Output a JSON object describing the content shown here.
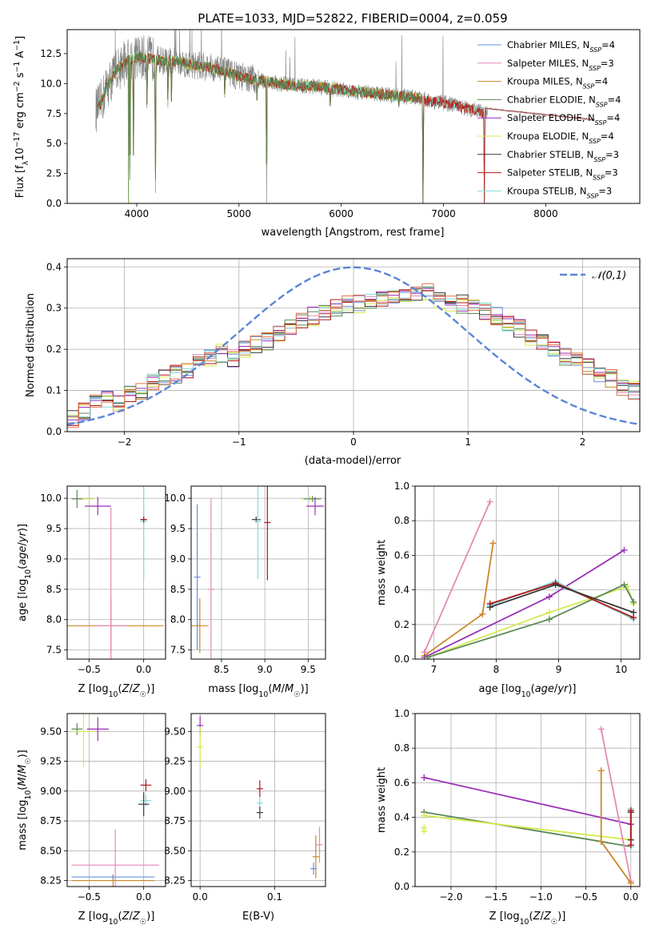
{
  "figure": {
    "title": "PLATE=1033, MJD=52822, FIBERID=0004, z=0.059"
  },
  "colors": {
    "Chabrier MILES": "#6a8fd8",
    "Salpeter MILES": "#e589b8",
    "Kroupa MILES": "#c8872a",
    "Chabrier ELODIE": "#5a8a56",
    "Salpeter ELODIE": "#9b30b8",
    "Kroupa ELODIE": "#d3ea4e",
    "Chabrier STELIB": "#3a3a3a",
    "Salpeter STELIB": "#b01818",
    "Kroupa STELIB": "#86d8da",
    "data": "#808080",
    "gaussian": "#5b86d6",
    "hist_extra": "#e4704a"
  },
  "chart_data": [
    {
      "id": "spectrum",
      "type": "line",
      "xlabel": "wavelength [Angstrom, rest frame]",
      "ylabel": "Flux [f_λ 10^-17 erg cm^-2 s^-1 A^-1]",
      "xlim": [
        3320,
        8920
      ],
      "ylim": [
        0,
        14.5
      ],
      "xticks": [
        4000,
        5000,
        6000,
        7000,
        8000
      ],
      "yticks": [
        0.0,
        2.5,
        5.0,
        7.5,
        10.0,
        12.5
      ],
      "legend_position": "top-right",
      "legend": [
        {
          "name": "Chabrier MILES",
          "nssp": "4"
        },
        {
          "name": "Salpeter MILES",
          "nssp": "3"
        },
        {
          "name": "Kroupa MILES",
          "nssp": "4"
        },
        {
          "name": "Chabrier ELODIE",
          "nssp": "4"
        },
        {
          "name": "Salpeter ELODIE",
          "nssp": "4"
        },
        {
          "name": "Kroupa ELODIE",
          "nssp": "4"
        },
        {
          "name": "Chabrier STELIB",
          "nssp": "3"
        },
        {
          "name": "Salpeter STELIB",
          "nssp": "3"
        },
        {
          "name": "Kroupa STELIB",
          "nssp": "3"
        }
      ],
      "continuum": [
        [
          3600,
          7.8
        ],
        [
          3650,
          8.3
        ],
        [
          3700,
          9.6
        ],
        [
          3750,
          10.3
        ],
        [
          3800,
          11.1
        ],
        [
          3900,
          11.9
        ],
        [
          4000,
          12.2
        ],
        [
          4100,
          12.1
        ],
        [
          4200,
          12.0
        ],
        [
          4300,
          11.8
        ],
        [
          4400,
          11.9
        ],
        [
          4500,
          11.6
        ],
        [
          4600,
          11.5
        ],
        [
          4700,
          11.4
        ],
        [
          4800,
          11.2
        ],
        [
          4900,
          10.9
        ],
        [
          5000,
          10.6
        ],
        [
          5100,
          10.4
        ],
        [
          5200,
          10.3
        ],
        [
          5300,
          10.1
        ],
        [
          5400,
          10.0
        ],
        [
          5500,
          9.9
        ],
        [
          5600,
          9.8
        ],
        [
          5700,
          9.8
        ],
        [
          5800,
          9.7
        ],
        [
          5900,
          9.6
        ],
        [
          6000,
          9.5
        ],
        [
          6100,
          9.4
        ],
        [
          6200,
          9.3
        ],
        [
          6300,
          9.2
        ],
        [
          6400,
          9.1
        ],
        [
          6500,
          9.0
        ],
        [
          6600,
          8.9
        ],
        [
          6700,
          8.9
        ],
        [
          6800,
          8.7
        ],
        [
          6900,
          8.5
        ],
        [
          7000,
          8.4
        ],
        [
          7100,
          8.2
        ],
        [
          7200,
          8.0
        ],
        [
          7300,
          7.8
        ],
        [
          7400,
          7.5
        ]
      ],
      "absorption_dips": [
        [
          3934,
          0.0
        ],
        [
          3968,
          4.0
        ],
        [
          4101,
          7.5
        ],
        [
          4183,
          0.0
        ],
        [
          4305,
          8.0
        ],
        [
          4340,
          8.5
        ],
        [
          4861,
          8.6
        ],
        [
          5176,
          8.6
        ],
        [
          5270,
          0.0
        ],
        [
          5893,
          7.9
        ],
        [
          6563,
          7.9
        ],
        [
          6800,
          0.0
        ],
        [
          7400,
          0.0
        ]
      ]
    },
    {
      "id": "residuals",
      "type": "line",
      "xlabel": "(data-model)/error",
      "ylabel": "Normed distribution",
      "xlim": [
        -2.5,
        2.5
      ],
      "ylim": [
        0,
        0.42
      ],
      "xticks": [
        -2,
        -1,
        0,
        1,
        2
      ],
      "yticks": [
        0.0,
        0.1,
        0.2,
        0.3,
        0.4
      ],
      "legend_position": "top-right",
      "gaussian_label": "𝒩(0,1)",
      "bin_width": 0.1,
      "bins_start": -2.5,
      "histogram": [
        0.03,
        0.05,
        0.07,
        0.08,
        0.07,
        0.09,
        0.1,
        0.12,
        0.13,
        0.14,
        0.15,
        0.17,
        0.18,
        0.19,
        0.18,
        0.2,
        0.21,
        0.22,
        0.24,
        0.25,
        0.27,
        0.28,
        0.29,
        0.3,
        0.31,
        0.31,
        0.32,
        0.32,
        0.33,
        0.33,
        0.33,
        0.34,
        0.32,
        0.31,
        0.31,
        0.3,
        0.29,
        0.28,
        0.26,
        0.25,
        0.23,
        0.22,
        0.2,
        0.18,
        0.17,
        0.16,
        0.14,
        0.13,
        0.11,
        0.1,
        0.09,
        0.08,
        0.07,
        0.06,
        0.06,
        0.05,
        0.05,
        0.05,
        0.04,
        0.04
      ]
    },
    {
      "id": "age_vs_Z",
      "type": "scatter",
      "xlabel": "Z [log10(Z/Z☉)]",
      "ylabel": "age  [log10(age/yr)]",
      "xlim": [
        -0.7,
        0.2
      ],
      "ylim": [
        7.35,
        10.2
      ],
      "xticks": [
        -0.5,
        0.0
      ],
      "xticklabels": [
        "−0.5",
        "0.0"
      ],
      "yticks": [
        7.5,
        8.0,
        8.5,
        9.0,
        9.5,
        10.0
      ],
      "points": [
        {
          "series": "Kroupa ELODIE",
          "x": -0.55,
          "y": 9.99,
          "xerr": 0.1,
          "yerr": 0.0
        },
        {
          "series": "Chabrier ELODIE",
          "x": -0.61,
          "y": 9.99,
          "xerr": 0.05,
          "yerr": 0.15
        },
        {
          "series": "Salpeter ELODIE",
          "x": -0.42,
          "y": 9.87,
          "xerr": 0.12,
          "yerr": 0.15
        },
        {
          "series": "Chabrier STELIB",
          "x": 0.0,
          "y": 9.65,
          "xerr": 0.0,
          "yerr": 0.05
        },
        {
          "series": "Kroupa STELIB",
          "x": 0.0,
          "y": 9.62,
          "xerr": 0.0,
          "yerr": 0.95
        },
        {
          "series": "Salpeter STELIB",
          "x": 0.0,
          "y": 9.65,
          "xerr": 0.0,
          "yerr": 0.05
        },
        {
          "series": "Kroupa MILES",
          "x": -0.3,
          "y": 7.9,
          "xerr": 0.48,
          "yerr": 0.45
        },
        {
          "series": "Salpeter MILES",
          "x": -0.3,
          "y": 7.9,
          "xerr": 0.15,
          "yerr": 1.95
        }
      ]
    },
    {
      "id": "age_vs_mass",
      "type": "scatter",
      "xlabel": "mass [log10(M/M☉)]",
      "ylabel": "",
      "xlim": [
        8.15,
        9.7
      ],
      "ylim": [
        7.35,
        10.2
      ],
      "xticks": [
        8.5,
        9.0,
        9.5
      ],
      "yticks": [
        7.5,
        8.0,
        8.5,
        9.0,
        9.5,
        10.0
      ],
      "points": [
        {
          "series": "Kroupa ELODIE",
          "x": 9.52,
          "y": 9.99,
          "xerr": 0.1,
          "yerr": 0.05
        },
        {
          "series": "Chabrier ELODIE",
          "x": 9.55,
          "y": 9.99,
          "xerr": 0.1,
          "yerr": 0.05
        },
        {
          "series": "Salpeter ELODIE",
          "x": 9.58,
          "y": 9.87,
          "xerr": 0.1,
          "yerr": 0.15
        },
        {
          "series": "Chabrier STELIB",
          "x": 8.9,
          "y": 9.65,
          "xerr": 0.05,
          "yerr": 0.05
        },
        {
          "series": "Kroupa STELIB",
          "x": 8.92,
          "y": 9.62,
          "xerr": 0.0,
          "yerr": 0.95
        },
        {
          "series": "Salpeter STELIB",
          "x": 9.03,
          "y": 9.6,
          "xerr": 0.0,
          "yerr": 0.95
        },
        {
          "series": "Kroupa MILES",
          "x": 8.25,
          "y": 7.9,
          "xerr": 0.1,
          "yerr": 0.45
        },
        {
          "series": "Salpeter MILES",
          "x": 8.38,
          "y": 8.5,
          "xerr": 0.0,
          "yerr": 1.5
        },
        {
          "series": "Chabrier MILES",
          "x": 8.22,
          "y": 8.7,
          "xerr": 0.0,
          "yerr": 1.2
        }
      ]
    },
    {
      "id": "mass_weight_vs_age",
      "type": "line",
      "xlabel": "age  [log10(age/yr)]",
      "ylabel": "mass weight",
      "xlim": [
        6.7,
        10.3
      ],
      "ylim": [
        0,
        1.0
      ],
      "xticks": [
        7,
        8,
        9,
        10
      ],
      "yticks": [
        0.0,
        0.2,
        0.4,
        0.6,
        0.8,
        1.0
      ],
      "series": [
        {
          "name": "Salpeter MILES",
          "x": [
            6.85,
            7.9
          ],
          "y": [
            0.04,
            0.91
          ]
        },
        {
          "name": "Kroupa MILES",
          "x": [
            6.85,
            7.78,
            7.95
          ],
          "y": [
            0.02,
            0.26,
            0.67
          ]
        },
        {
          "name": "Salpeter ELODIE",
          "x": [
            6.85,
            8.85,
            10.05
          ],
          "y": [
            0.01,
            0.36,
            0.63
          ]
        },
        {
          "name": "Kroupa ELODIE",
          "x": [
            6.9,
            8.85,
            10.1,
            10.2
          ],
          "y": [
            0.01,
            0.27,
            0.42,
            0.32
          ]
        },
        {
          "name": "Chabrier ELODIE",
          "x": [
            6.9,
            8.85,
            10.05,
            10.2
          ],
          "y": [
            0.01,
            0.23,
            0.43,
            0.33
          ]
        },
        {
          "name": "Kroupa STELIB",
          "x": [
            7.9,
            8.95,
            10.2
          ],
          "y": [
            0.31,
            0.45,
            0.23
          ]
        },
        {
          "name": "Salpeter STELIB",
          "x": [
            7.9,
            8.95,
            10.2
          ],
          "y": [
            0.32,
            0.44,
            0.24
          ]
        },
        {
          "name": "Chabrier STELIB",
          "x": [
            7.9,
            8.95,
            10.2
          ],
          "y": [
            0.3,
            0.43,
            0.27
          ]
        }
      ]
    },
    {
      "id": "mass_vs_Z",
      "type": "scatter",
      "xlabel": "Z [log10(Z/Z☉)]",
      "ylabel": "mass [log10(M/M☉)]",
      "xlim": [
        -0.7,
        0.2
      ],
      "ylim": [
        8.2,
        9.65
      ],
      "xticks": [
        -0.5,
        0.0
      ],
      "xticklabels": [
        "−0.5",
        "0.0"
      ],
      "yticks": [
        8.25,
        8.5,
        8.75,
        9.0,
        9.25,
        9.5
      ],
      "points": [
        {
          "series": "Chabrier ELODIE",
          "x": -0.61,
          "y": 9.52,
          "xerr": 0.05,
          "yerr": 0.05
        },
        {
          "series": "Kroupa ELODIE",
          "x": -0.55,
          "y": 9.5,
          "xerr": 0.1,
          "yerr": 0.3
        },
        {
          "series": "Salpeter ELODIE",
          "x": -0.42,
          "y": 9.52,
          "xerr": 0.1,
          "yerr": 0.1
        },
        {
          "series": "Salpeter STELIB",
          "x": 0.02,
          "y": 9.05,
          "xerr": 0.05,
          "yerr": 0.05
        },
        {
          "series": "Kroupa STELIB",
          "x": 0.02,
          "y": 8.92,
          "xerr": 0.05,
          "yerr": 0.05
        },
        {
          "series": "Chabrier STELIB",
          "x": 0.0,
          "y": 8.89,
          "xerr": 0.05,
          "yerr": 0.1
        },
        {
          "series": "Salpeter MILES",
          "x": -0.26,
          "y": 8.38,
          "xerr": 0.4,
          "yerr": 0.3
        },
        {
          "series": "Kroupa MILES",
          "x": -0.28,
          "y": 8.25,
          "xerr": 0.38,
          "yerr": 0.05
        },
        {
          "series": "Chabrier MILES",
          "x": -0.28,
          "y": 8.28,
          "xerr": 0.38,
          "yerr": 0.02
        }
      ]
    },
    {
      "id": "mass_vs_EBV",
      "type": "scatter",
      "xlabel": "E(B-V)",
      "ylabel": "",
      "xlim": [
        -0.012,
        0.168
      ],
      "ylim": [
        8.2,
        9.65
      ],
      "xticks": [
        0.0,
        0.1
      ],
      "yticks": [
        8.25,
        8.5,
        8.75,
        9.0,
        9.25,
        9.5
      ],
      "points": [
        {
          "series": "Salpeter ELODIE",
          "x": 0.0,
          "y": 9.55,
          "xerr": 0.0,
          "yerr": 0.08
        },
        {
          "series": "Kroupa ELODIE",
          "x": 0.0,
          "y": 9.37,
          "xerr": 0.0,
          "yerr": 0.17
        },
        {
          "series": "Salpeter STELIB",
          "x": 0.08,
          "y": 9.02,
          "xerr": 0.0,
          "yerr": 0.07
        },
        {
          "series": "Kroupa STELIB",
          "x": 0.08,
          "y": 8.9,
          "xerr": 0.0,
          "yerr": 0.05
        },
        {
          "series": "Chabrier STELIB",
          "x": 0.08,
          "y": 8.82,
          "xerr": 0.0,
          "yerr": 0.05
        },
        {
          "series": "Salpeter MILES",
          "x": 0.16,
          "y": 8.55,
          "xerr": 0.0,
          "yerr": 0.15
        },
        {
          "series": "Kroupa MILES",
          "x": 0.155,
          "y": 8.45,
          "xerr": 0.0,
          "yerr": 0.18
        },
        {
          "series": "Chabrier MILES",
          "x": 0.152,
          "y": 8.35,
          "xerr": 0.0,
          "yerr": 0.05
        }
      ]
    },
    {
      "id": "mass_weight_vs_Z",
      "type": "line",
      "xlabel": "Z [log10(Z/Z☉)]",
      "ylabel": "mass weight",
      "xlim": [
        -2.4,
        0.1
      ],
      "ylim": [
        0,
        1.0
      ],
      "xticks": [
        -2.0,
        -1.5,
        -1.0,
        -0.5,
        0.0
      ],
      "xticklabels": [
        "−2.0",
        "−1.5",
        "−1.0",
        "−0.5",
        "0.0"
      ],
      "yticks": [
        0.0,
        0.2,
        0.4,
        0.6,
        0.8,
        1.0
      ],
      "series": [
        {
          "name": "Salpeter ELODIE",
          "x": [
            -2.3,
            0.0
          ],
          "y": [
            0.63,
            0.36
          ]
        },
        {
          "name": "Chabrier ELODIE",
          "x": [
            -2.3,
            -0.33,
            0.0
          ],
          "y": [
            0.43,
            0.26,
            0.23
          ]
        },
        {
          "name": "Kroupa ELODIE",
          "x": [
            -2.3,
            0.0
          ],
          "y": [
            0.41,
            0.27
          ]
        },
        {
          "name": "Kroupa ELODIE",
          "x": [
            -2.3,
            -2.3
          ],
          "y": [
            0.32,
            0.34
          ]
        },
        {
          "name": "Salpeter MILES",
          "x": [
            -0.33,
            0.0
          ],
          "y": [
            0.91,
            0.03
          ]
        },
        {
          "name": "Kroupa MILES",
          "x": [
            -0.33,
            -0.33,
            0.0
          ],
          "y": [
            0.67,
            0.26,
            0.02
          ]
        },
        {
          "name": "Kroupa STELIB",
          "x": [
            0.0,
            0.0
          ],
          "y": [
            0.45,
            0.23
          ]
        },
        {
          "name": "Chabrier STELIB",
          "x": [
            0.0,
            0.0
          ],
          "y": [
            0.43,
            0.27
          ]
        },
        {
          "name": "Salpeter STELIB",
          "x": [
            0.0,
            0.0
          ],
          "y": [
            0.44,
            0.24
          ]
        }
      ]
    }
  ]
}
